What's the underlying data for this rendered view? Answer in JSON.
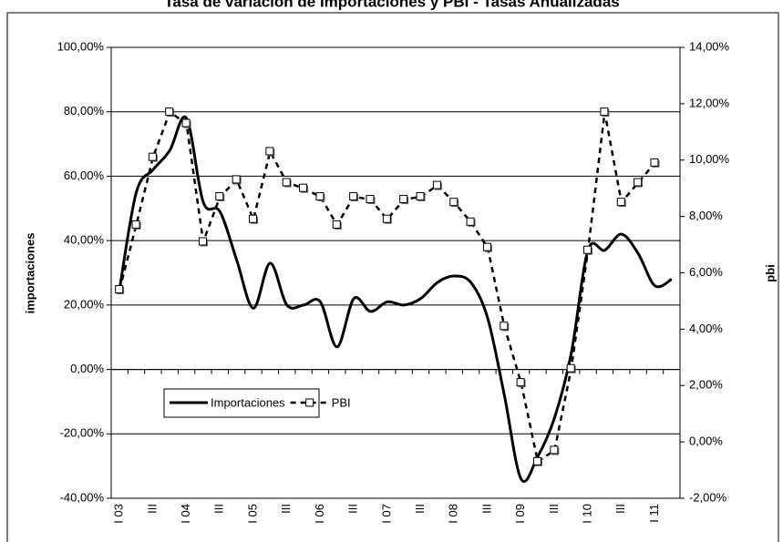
{
  "chart_data": {
    "type": "line",
    "title": "Tasa de variación de Importaciones y PBI - Tasas Anualizadas",
    "y_label": "importaciones",
    "y2_label": "pbi",
    "categories": [
      "I 03",
      null,
      "III",
      null,
      "I 04",
      null,
      "III",
      null,
      "I 05",
      null,
      "III",
      null,
      "I 06",
      null,
      "III",
      null,
      "I 07",
      null,
      "III",
      null,
      "I 08",
      null,
      "III",
      null,
      "I 09",
      null,
      "III",
      null,
      "I 10",
      null,
      "III",
      null,
      "I 11",
      null
    ],
    "series": [
      {
        "name": "Importaciones",
        "color": "#000000",
        "style": "solid",
        "smooth": true,
        "values": [
          25,
          55,
          62,
          68,
          78,
          52,
          49,
          34,
          19,
          33,
          20,
          20,
          21,
          7,
          22,
          18,
          21,
          20,
          22,
          27,
          29,
          27,
          16,
          -8,
          -34,
          -27,
          -15,
          5,
          37,
          37,
          42,
          36,
          26,
          28
        ]
      },
      {
        "name": "PBI",
        "color": "#000000",
        "style": "dashed",
        "marker": "square",
        "axis": "y2",
        "values": [
          5.4,
          7.7,
          10.1,
          11.7,
          11.3,
          7.1,
          8.7,
          9.3,
          7.9,
          10.3,
          9.2,
          9.0,
          8.7,
          7.7,
          8.7,
          8.6,
          7.9,
          8.6,
          8.7,
          9.1,
          8.5,
          7.8,
          6.9,
          4.1,
          2.1,
          -0.7,
          -0.3,
          2.6,
          6.8,
          11.7,
          8.5,
          9.2,
          9.9,
          null
        ]
      }
    ],
    "ylim": [
      -40,
      100
    ],
    "yticks": [
      {
        "value": -40,
        "label": "-40,00%"
      },
      {
        "value": -20,
        "label": "-20,00%"
      },
      {
        "value": 0,
        "label": "0,00%"
      },
      {
        "value": 20,
        "label": "20,00%"
      },
      {
        "value": 40,
        "label": "40,00%"
      },
      {
        "value": 60,
        "label": "60,00%"
      },
      {
        "value": 80,
        "label": "80,00%"
      },
      {
        "value": 100,
        "label": "100,00%"
      }
    ],
    "y2lim": [
      -2,
      14
    ],
    "y2ticks": [
      {
        "value": -2,
        "label": "-2,00%"
      },
      {
        "value": 0,
        "label": "0,00%"
      },
      {
        "value": 2,
        "label": "2,00%"
      },
      {
        "value": 4,
        "label": "4,00%"
      },
      {
        "value": 6,
        "label": "6,00%"
      },
      {
        "value": 8,
        "label": "8,00%"
      },
      {
        "value": 10,
        "label": "10,00%"
      },
      {
        "value": 12,
        "label": "12,00%"
      },
      {
        "value": 14,
        "label": "14,00%"
      }
    ],
    "grid": true
  }
}
